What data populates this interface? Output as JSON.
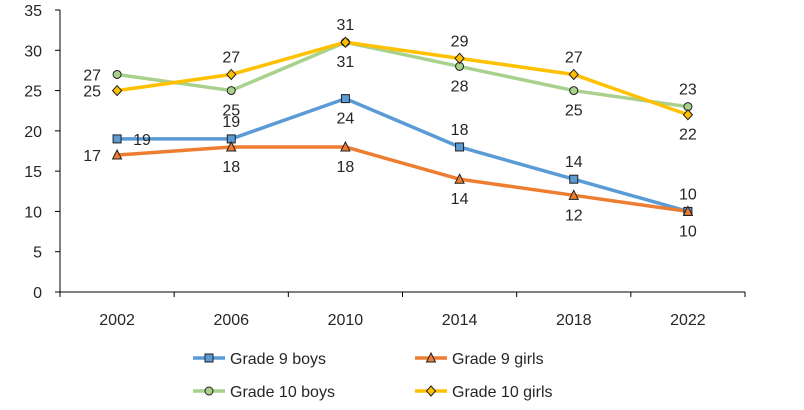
{
  "chart_data": {
    "type": "line",
    "title": "",
    "xlabel": "",
    "ylabel": "",
    "categories": [
      "2002",
      "2006",
      "2010",
      "2014",
      "2018",
      "2022"
    ],
    "ylim": [
      0,
      35
    ],
    "yticks": [
      0,
      5,
      10,
      15,
      20,
      25,
      30,
      35
    ],
    "grid": false,
    "legend_position": "bottom",
    "series": [
      {
        "name": "Grade 9 boys",
        "values": [
          19,
          19,
          24,
          18,
          14,
          10
        ],
        "color": "#5B9BD5",
        "marker": "square",
        "marker_color": "#5B9BD5",
        "label_side": [
          "right",
          "top",
          "bottom",
          "top",
          "top",
          "top"
        ]
      },
      {
        "name": "Grade 9 girls",
        "values": [
          17,
          18,
          18,
          14,
          12,
          10
        ],
        "color": "#ED7D31",
        "marker": "triangle",
        "marker_color": "#ED7D31",
        "label_side": [
          "left",
          "bottom",
          "bottom",
          "bottom",
          "bottom",
          "bottom"
        ]
      },
      {
        "name": "Grade 10 boys",
        "values": [
          27,
          25,
          31,
          28,
          25,
          23
        ],
        "color": "#A9D18E",
        "marker": "circle",
        "marker_color": "#A9D18E",
        "label_side": [
          "left",
          "bottom",
          "bottom",
          "bottom",
          "bottom",
          "top"
        ]
      },
      {
        "name": "Grade 10 girls",
        "values": [
          25,
          27,
          31,
          29,
          27,
          22
        ],
        "color": "#FFC000",
        "marker": "diamond",
        "marker_color": "#FFC000",
        "label_side": [
          "left",
          "top",
          "top",
          "top",
          "top",
          "bottom"
        ]
      }
    ]
  }
}
